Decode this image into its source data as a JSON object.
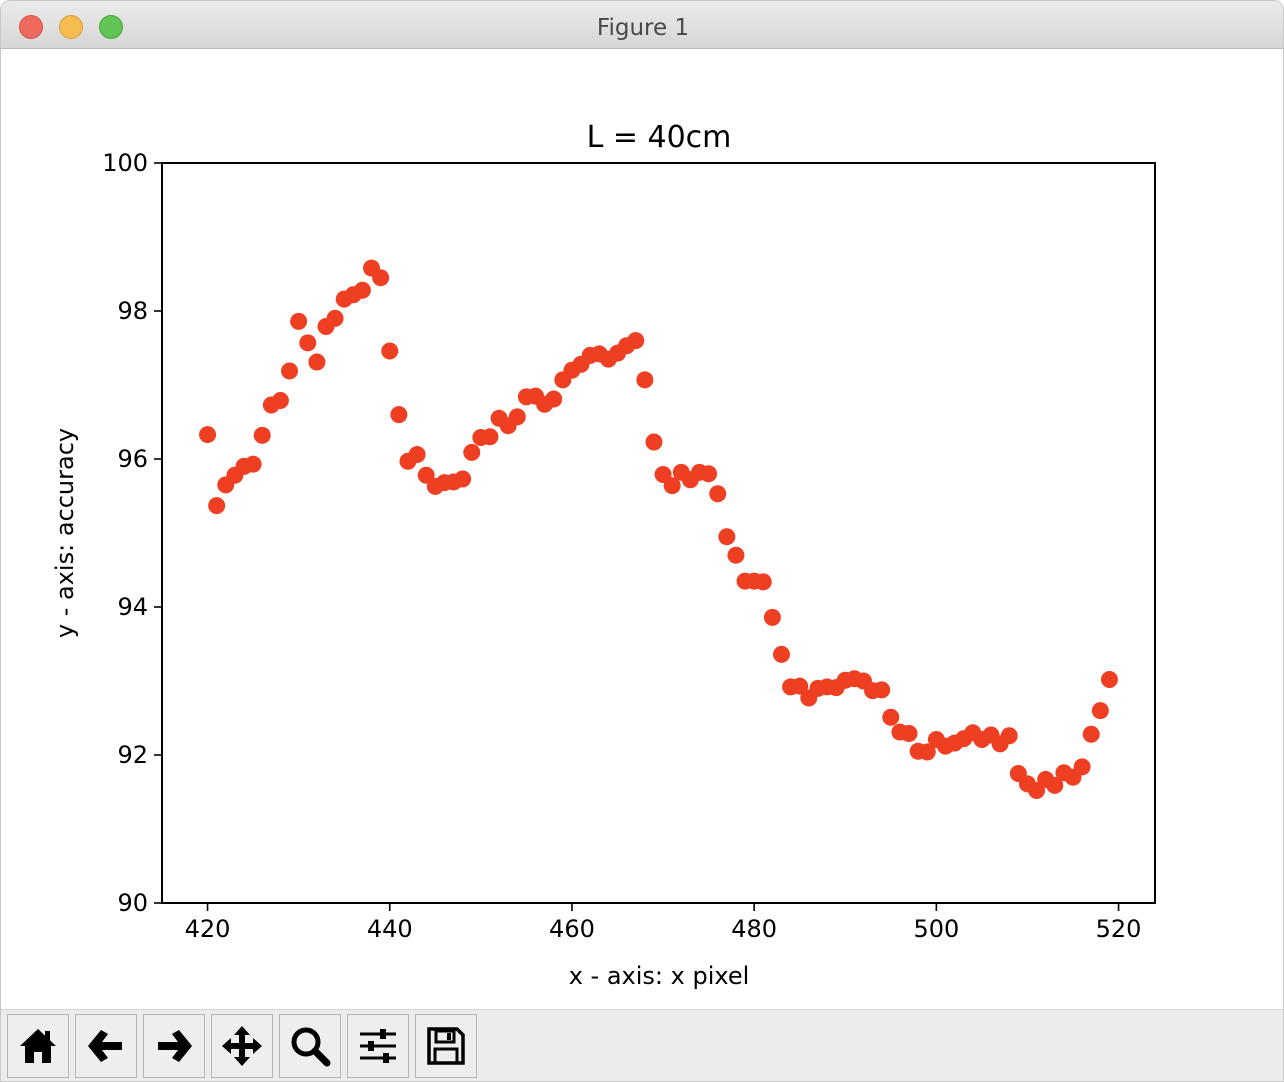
{
  "window": {
    "title": "Figure 1"
  },
  "toolbar": {
    "buttons": [
      {
        "icon": "home-icon"
      },
      {
        "icon": "back-arrow-icon"
      },
      {
        "icon": "forward-arrow-icon"
      },
      {
        "icon": "pan-icon"
      },
      {
        "icon": "zoom-icon"
      },
      {
        "icon": "configure-subplots-icon"
      },
      {
        "icon": "save-icon"
      }
    ]
  },
  "colors": {
    "marker": "#ee3f22",
    "titlebar": "#e2e2e2",
    "toolbar": "#ececec"
  },
  "chart_data": {
    "type": "scatter",
    "title": "L = 40cm",
    "xlabel": "x - axis: x pixel",
    "ylabel": "y - axis: accuracy",
    "xlim": [
      415,
      524
    ],
    "ylim": [
      90,
      100
    ],
    "xticks": [
      "420",
      "440",
      "460",
      "480",
      "500",
      "520"
    ],
    "yticks": [
      "90",
      "92",
      "94",
      "96",
      "98",
      "100"
    ],
    "grid": false,
    "color": "#ee3f22",
    "x": [
      420,
      421,
      422,
      423,
      424,
      425,
      426,
      427,
      428,
      429,
      430,
      431,
      432,
      433,
      434,
      435,
      436,
      437,
      438,
      439,
      440,
      441,
      442,
      443,
      444,
      445,
      446,
      447,
      448,
      449,
      450,
      451,
      452,
      453,
      454,
      455,
      456,
      457,
      458,
      459,
      460,
      461,
      462,
      463,
      464,
      465,
      466,
      467,
      468,
      469,
      470,
      471,
      472,
      473,
      474,
      475,
      476,
      477,
      478,
      479,
      480,
      481,
      482,
      483,
      484,
      485,
      486,
      487,
      488,
      489,
      490,
      491,
      492,
      493,
      494,
      495,
      496,
      497,
      498,
      499,
      500,
      501,
      502,
      503,
      504,
      505,
      506,
      507,
      508,
      509,
      510,
      511,
      512,
      513,
      514,
      515,
      516,
      517,
      518,
      519
    ],
    "y": [
      96.33,
      95.37,
      95.65,
      95.78,
      95.9,
      95.93,
      96.32,
      96.73,
      96.79,
      97.19,
      97.86,
      97.57,
      97.31,
      97.79,
      97.9,
      98.16,
      98.22,
      98.28,
      98.58,
      98.45,
      97.46,
      96.6,
      95.97,
      96.06,
      95.78,
      95.63,
      95.68,
      95.69,
      95.73,
      96.09,
      96.29,
      96.3,
      96.55,
      96.45,
      96.57,
      96.84,
      96.85,
      96.74,
      96.81,
      97.07,
      97.2,
      97.28,
      97.4,
      97.42,
      97.35,
      97.43,
      97.53,
      97.6,
      97.07,
      96.23,
      95.79,
      95.64,
      95.82,
      95.72,
      95.82,
      95.8,
      95.53,
      94.95,
      94.7,
      94.35,
      94.35,
      94.34,
      93.86,
      93.36,
      92.92,
      92.93,
      92.77,
      92.9,
      92.92,
      92.91,
      93.01,
      93.03,
      93.0,
      92.87,
      92.88,
      92.51,
      92.31,
      92.29,
      92.05,
      92.04,
      92.21,
      92.12,
      92.16,
      92.22,
      92.3,
      92.21,
      92.27,
      92.15,
      92.26,
      91.75,
      91.61,
      91.52,
      91.67,
      91.59,
      91.76,
      91.7,
      91.84,
      92.28,
      92.6,
      93.02
    ]
  }
}
